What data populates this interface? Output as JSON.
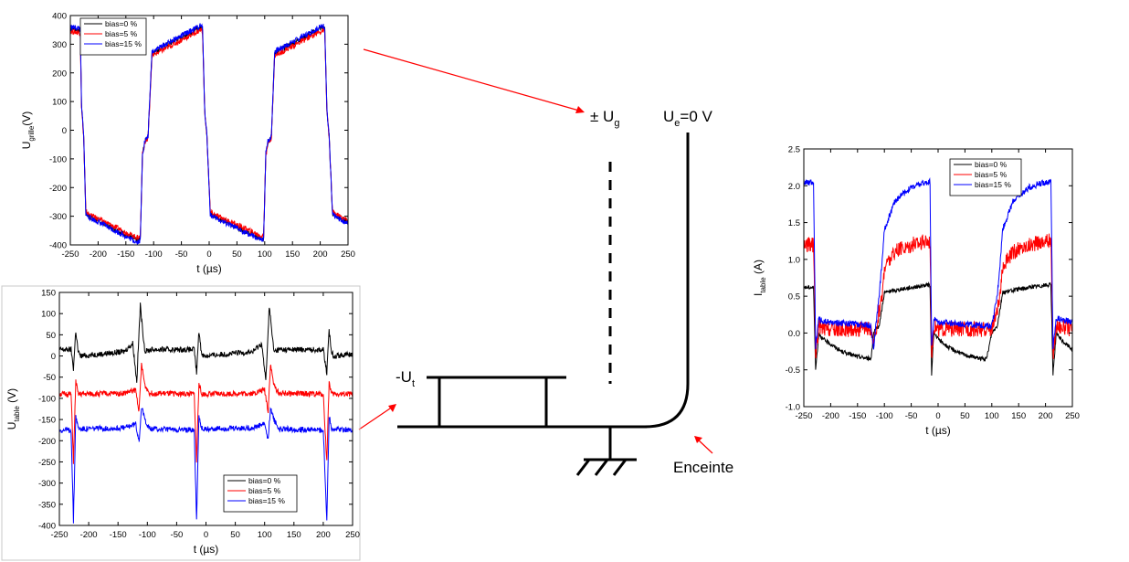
{
  "chart_data": [
    {
      "type": "line",
      "id": "ugrille",
      "xlabel": "t (µs)",
      "ylabel_main": "U",
      "ylabel_sub": "grille",
      "ylabel_suffix": "(V)",
      "xlim": [
        -250,
        250
      ],
      "ylim": [
        -400,
        400
      ],
      "xticks": [
        -250,
        -200,
        -150,
        -100,
        -50,
        0,
        50,
        100,
        150,
        200,
        250
      ],
      "yticks": [
        -400,
        -300,
        -200,
        -100,
        0,
        100,
        200,
        300,
        400
      ],
      "legend_position": "top-left",
      "series": [
        {
          "name": "bias=0 %",
          "color": "#000000",
          "x": [
            -250,
            -232,
            -230,
            -226,
            -222,
            -215,
            -130,
            -124,
            -120,
            -116,
            -110,
            -103,
            -15,
            -12,
            -8,
            -4,
            2,
            10,
            95,
            98,
            102,
            106,
            112,
            118,
            205,
            208,
            212,
            216,
            222,
            230,
            250
          ],
          "y": [
            355,
            350,
            90,
            -20,
            -290,
            -300,
            -385,
            -380,
            -80,
            -40,
            -20,
            270,
            360,
            355,
            70,
            -20,
            -290,
            -300,
            -380,
            -380,
            -80,
            -40,
            -20,
            270,
            360,
            355,
            70,
            -20,
            -290,
            -300,
            -320
          ]
        },
        {
          "name": "bias=5 %",
          "color": "#ff0000",
          "x": [
            -250,
            -232,
            -230,
            -226,
            -222,
            -215,
            -130,
            -124,
            -120,
            -116,
            -110,
            -103,
            -15,
            -12,
            -8,
            -4,
            2,
            10,
            95,
            98,
            102,
            106,
            112,
            118,
            205,
            208,
            212,
            216,
            222,
            230,
            250
          ],
          "y": [
            345,
            340,
            85,
            -25,
            -285,
            -295,
            -375,
            -370,
            -85,
            -45,
            -25,
            260,
            350,
            345,
            65,
            -25,
            -285,
            -295,
            -370,
            -370,
            -85,
            -45,
            -25,
            260,
            350,
            345,
            65,
            -25,
            -285,
            -295,
            -315
          ]
        },
        {
          "name": "bias=15 %",
          "color": "#0000ff",
          "x": [
            -250,
            -232,
            -230,
            -226,
            -222,
            -215,
            -130,
            -124,
            -120,
            -116,
            -110,
            -103,
            -15,
            -12,
            -8,
            -4,
            2,
            10,
            95,
            98,
            102,
            106,
            112,
            118,
            205,
            208,
            212,
            216,
            222,
            230,
            250
          ],
          "y": [
            360,
            355,
            90,
            -20,
            -295,
            -305,
            -390,
            -385,
            -80,
            -40,
            -20,
            275,
            365,
            360,
            70,
            -20,
            -295,
            -305,
            -385,
            -385,
            -80,
            -40,
            -20,
            275,
            365,
            360,
            70,
            -20,
            -295,
            -305,
            -325
          ]
        }
      ]
    },
    {
      "type": "line",
      "id": "utable",
      "xlabel": "t (µs)",
      "ylabel_main": "U",
      "ylabel_sub": "table",
      "ylabel_suffix": " (V)",
      "xlim": [
        -250,
        250
      ],
      "ylim": [
        -400,
        150
      ],
      "xticks": [
        -250,
        -200,
        -150,
        -100,
        -50,
        0,
        50,
        100,
        150,
        200,
        250
      ],
      "yticks": [
        -400,
        -350,
        -300,
        -250,
        -200,
        -150,
        -100,
        -50,
        0,
        50,
        100,
        150
      ],
      "legend_position": "bottom-right",
      "series": [
        {
          "name": "bias=0 %",
          "color": "#000000",
          "x": [
            -250,
            -230,
            -226,
            -222,
            -218,
            -214,
            -140,
            -125,
            -118,
            -112,
            -108,
            -104,
            -96,
            -20,
            -16,
            -12,
            -8,
            -4,
            80,
            95,
            102,
            108,
            112,
            116,
            124,
            200,
            206,
            210,
            214,
            218,
            250
          ],
          "y": [
            15,
            15,
            -30,
            60,
            10,
            0,
            10,
            30,
            -60,
            120,
            60,
            10,
            15,
            15,
            -40,
            60,
            10,
            0,
            10,
            30,
            -60,
            120,
            60,
            10,
            15,
            15,
            -40,
            60,
            10,
            0,
            5
          ]
        },
        {
          "name": "bias=5 %",
          "color": "#ff0000",
          "x": [
            -250,
            -230,
            -226,
            -222,
            -218,
            -214,
            -140,
            -120,
            -114,
            -110,
            -104,
            -96,
            -20,
            -16,
            -12,
            -8,
            -4,
            80,
            100,
            106,
            110,
            116,
            124,
            200,
            206,
            210,
            214,
            218,
            250
          ],
          "y": [
            -90,
            -90,
            -250,
            -60,
            -90,
            -90,
            -88,
            -80,
            -130,
            -20,
            -70,
            -88,
            -90,
            -250,
            -60,
            -90,
            -90,
            -88,
            -80,
            -130,
            -20,
            -70,
            -88,
            -90,
            -250,
            -60,
            -90,
            -90,
            -90
          ]
        },
        {
          "name": "bias=15 %",
          "color": "#0000ff",
          "x": [
            -250,
            -230,
            -226,
            -222,
            -218,
            -214,
            -140,
            -120,
            -114,
            -110,
            -104,
            -96,
            -20,
            -16,
            -12,
            -8,
            -4,
            80,
            100,
            106,
            110,
            116,
            124,
            200,
            206,
            210,
            214,
            218,
            250
          ],
          "y": [
            -175,
            -175,
            -390,
            -140,
            -170,
            -172,
            -170,
            -160,
            -200,
            -120,
            -150,
            -172,
            -175,
            -390,
            -140,
            -170,
            -172,
            -170,
            -160,
            -200,
            -120,
            -150,
            -172,
            -175,
            -390,
            -140,
            -170,
            -172,
            -175
          ]
        }
      ]
    },
    {
      "type": "line",
      "id": "itable",
      "xlabel": "t (µs)",
      "ylabel_main": "I",
      "ylabel_sub": "table",
      "ylabel_suffix": " (A)",
      "xlim": [
        -250,
        250
      ],
      "ylim": [
        -1.0,
        2.5
      ],
      "xticks": [
        -250,
        -200,
        -150,
        -100,
        -50,
        0,
        50,
        100,
        150,
        200,
        250
      ],
      "yticks": [
        -1.0,
        -0.5,
        0.0,
        0.5,
        1.0,
        1.5,
        2.0,
        2.5
      ],
      "legend_position": "top-right",
      "series": [
        {
          "name": "bias=0 %",
          "color": "#000000",
          "x": [
            -250,
            -232,
            -228,
            -222,
            -215,
            -200,
            -180,
            -150,
            -125,
            -120,
            -110,
            -104,
            -100,
            -80,
            -50,
            -20,
            -15,
            -12,
            -8,
            0,
            20,
            50,
            90,
            100,
            110,
            116,
            120,
            140,
            170,
            200,
            210,
            214,
            220,
            230,
            250
          ],
          "y": [
            0.62,
            0.62,
            -0.5,
            0.0,
            -0.08,
            -0.15,
            -0.25,
            -0.32,
            -0.35,
            0.0,
            0.1,
            0.35,
            0.55,
            0.58,
            0.62,
            0.65,
            0.65,
            -0.55,
            0.0,
            -0.08,
            -0.2,
            -0.3,
            -0.36,
            0.0,
            0.1,
            0.35,
            0.55,
            0.58,
            0.62,
            0.65,
            0.65,
            -0.55,
            0.0,
            -0.1,
            -0.22
          ]
        },
        {
          "name": "bias=5 %",
          "color": "#ff0000",
          "x": [
            -250,
            -232,
            -228,
            -222,
            -215,
            -150,
            -125,
            -120,
            -110,
            -104,
            -100,
            -80,
            -50,
            -20,
            -15,
            -12,
            -8,
            0,
            50,
            90,
            100,
            110,
            116,
            120,
            140,
            170,
            200,
            210,
            214,
            220,
            250
          ],
          "y": [
            1.2,
            1.2,
            -0.3,
            0.1,
            0.05,
            0.05,
            0.05,
            -0.2,
            0.3,
            0.5,
            0.9,
            1.1,
            1.2,
            1.25,
            1.25,
            -0.3,
            0.1,
            0.05,
            0.05,
            0.05,
            0.05,
            0.3,
            0.5,
            0.9,
            1.1,
            1.2,
            1.25,
            1.25,
            -0.3,
            0.1,
            0.05
          ]
        },
        {
          "name": "bias=15 %",
          "color": "#0000ff",
          "x": [
            -250,
            -232,
            -228,
            -222,
            -215,
            -150,
            -125,
            -120,
            -110,
            -104,
            -100,
            -80,
            -50,
            -20,
            -15,
            -12,
            -8,
            0,
            50,
            90,
            100,
            110,
            116,
            120,
            140,
            170,
            200,
            210,
            214,
            220,
            250
          ],
          "y": [
            2.05,
            2.05,
            -0.2,
            0.2,
            0.15,
            0.12,
            0.1,
            -0.2,
            0.5,
            1.0,
            1.4,
            1.8,
            1.98,
            2.05,
            2.05,
            -0.2,
            0.2,
            0.15,
            0.12,
            0.1,
            0.1,
            0.5,
            1.0,
            1.4,
            1.8,
            1.98,
            2.05,
            2.05,
            -0.2,
            0.2,
            0.15
          ]
        }
      ]
    }
  ],
  "diagram": {
    "grid_label": "± U",
    "grid_label_sub": "g",
    "chamber_label_main": "U",
    "chamber_label_sub": "e",
    "chamber_label_suffix": "=0 V",
    "table_label": "-U",
    "table_label_sub": "t",
    "enceinte_label": "Enceinte",
    "arrow_color": "#ff0000"
  }
}
